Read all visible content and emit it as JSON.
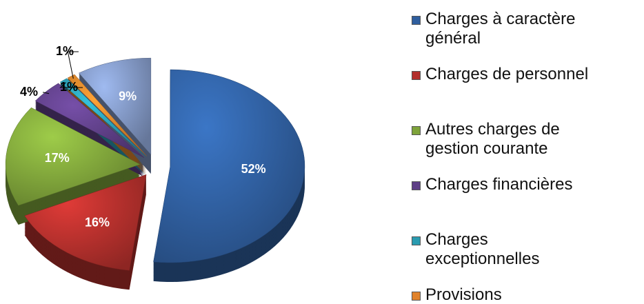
{
  "chart_data": {
    "type": "pie",
    "categories": [
      "Charges à caractère général",
      "Charges de personnel",
      "Autres charges de gestion courante",
      "Charges financières",
      "Charges exceptionnelles",
      "Provisions",
      null
    ],
    "values": [
      52,
      16,
      17,
      4,
      1,
      1,
      9
    ],
    "value_labels": [
      "52%",
      "16%",
      "17%",
      "4%",
      "1%",
      "1%",
      "9%"
    ],
    "colors": [
      "#2f5e9e",
      "#b22f2c",
      "#7ea33a",
      "#5e3f86",
      "#2a9bb0",
      "#e0822b",
      "#7f95c0"
    ],
    "legend": "right"
  }
}
